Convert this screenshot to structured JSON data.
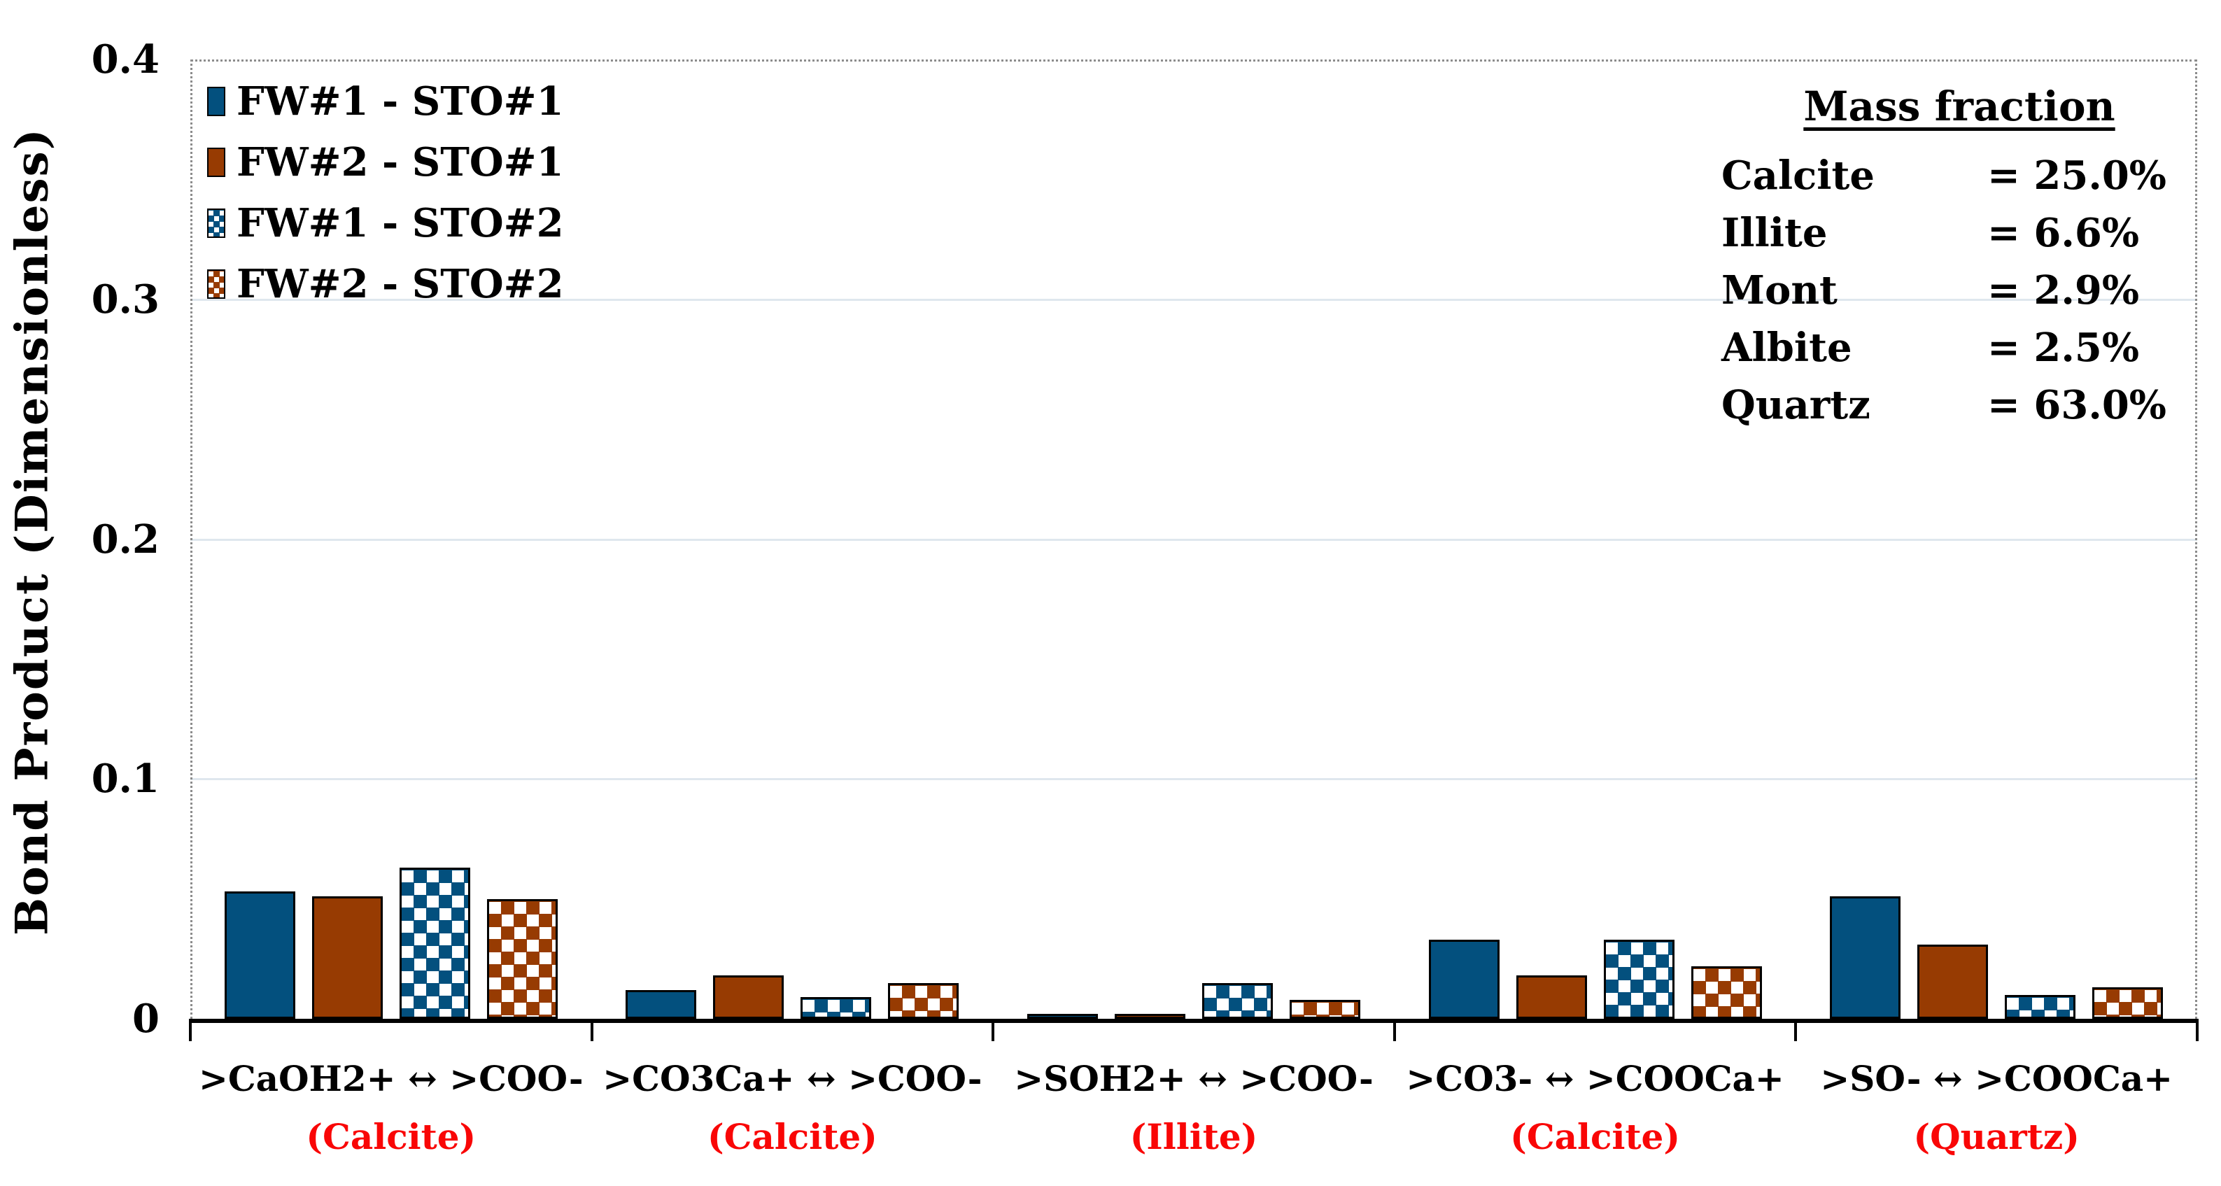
{
  "style": {
    "blue_hex": "#03507e",
    "orange_hex": "#973b02",
    "mineral_label_red": "#f90606",
    "grid_color": "#dfe7ee",
    "plot_border_gray": "#8c8c8c",
    "axis_color": "#000000"
  },
  "y_axis": {
    "title": "Bond Product (Dimensionless)"
  },
  "mass_fraction": {
    "title": "Mass fraction",
    "rows": [
      {
        "name": "Calcite",
        "value": "= 25.0%"
      },
      {
        "name": "Illite",
        "value": "= 6.6%"
      },
      {
        "name": "Mont",
        "value": "= 2.9%"
      },
      {
        "name": "Albite",
        "value": "= 2.5%"
      },
      {
        "name": "Quartz",
        "value": "= 63.0%"
      }
    ]
  },
  "chart_data": {
    "type": "bar",
    "title": "",
    "xlabel": "",
    "ylabel": "Bond Product (Dimensionless)",
    "ylim": [
      0,
      0.4
    ],
    "yticks": [
      0,
      0.1,
      0.2,
      0.3,
      0.4
    ],
    "ytick_labels": [
      "0",
      "0.1",
      "0.2",
      "0.3",
      "0.4"
    ],
    "grid": "horizontal",
    "legend_position": "top-left",
    "categories": [
      ">CaOH2+ ↔ >COO-",
      ">CO3Ca+ ↔ >COO-",
      ">SOH2+ ↔ >COO-",
      ">CO3- ↔ >COOCa+",
      ">SO- ↔ >COOCa+"
    ],
    "category_minerals": [
      "(Calcite)",
      "(Calcite)",
      "(Illite)",
      "(Calcite)",
      "(Quartz)"
    ],
    "series": [
      {
        "name": "FW#1 - STO#1",
        "fill": "solid",
        "color": "blue",
        "values": [
          0.053,
          0.012,
          0.002,
          0.033,
          0.051
        ]
      },
      {
        "name": "FW#2 - STO#1",
        "fill": "solid",
        "color": "orange",
        "values": [
          0.051,
          0.018,
          0.002,
          0.018,
          0.031
        ]
      },
      {
        "name": "FW#1 - STO#2",
        "fill": "checker",
        "color": "blue",
        "values": [
          0.063,
          0.009,
          0.015,
          0.033,
          0.01
        ]
      },
      {
        "name": "FW#2 - STO#2",
        "fill": "checker",
        "color": "orange",
        "values": [
          0.05,
          0.015,
          0.008,
          0.022,
          0.013
        ]
      }
    ]
  }
}
